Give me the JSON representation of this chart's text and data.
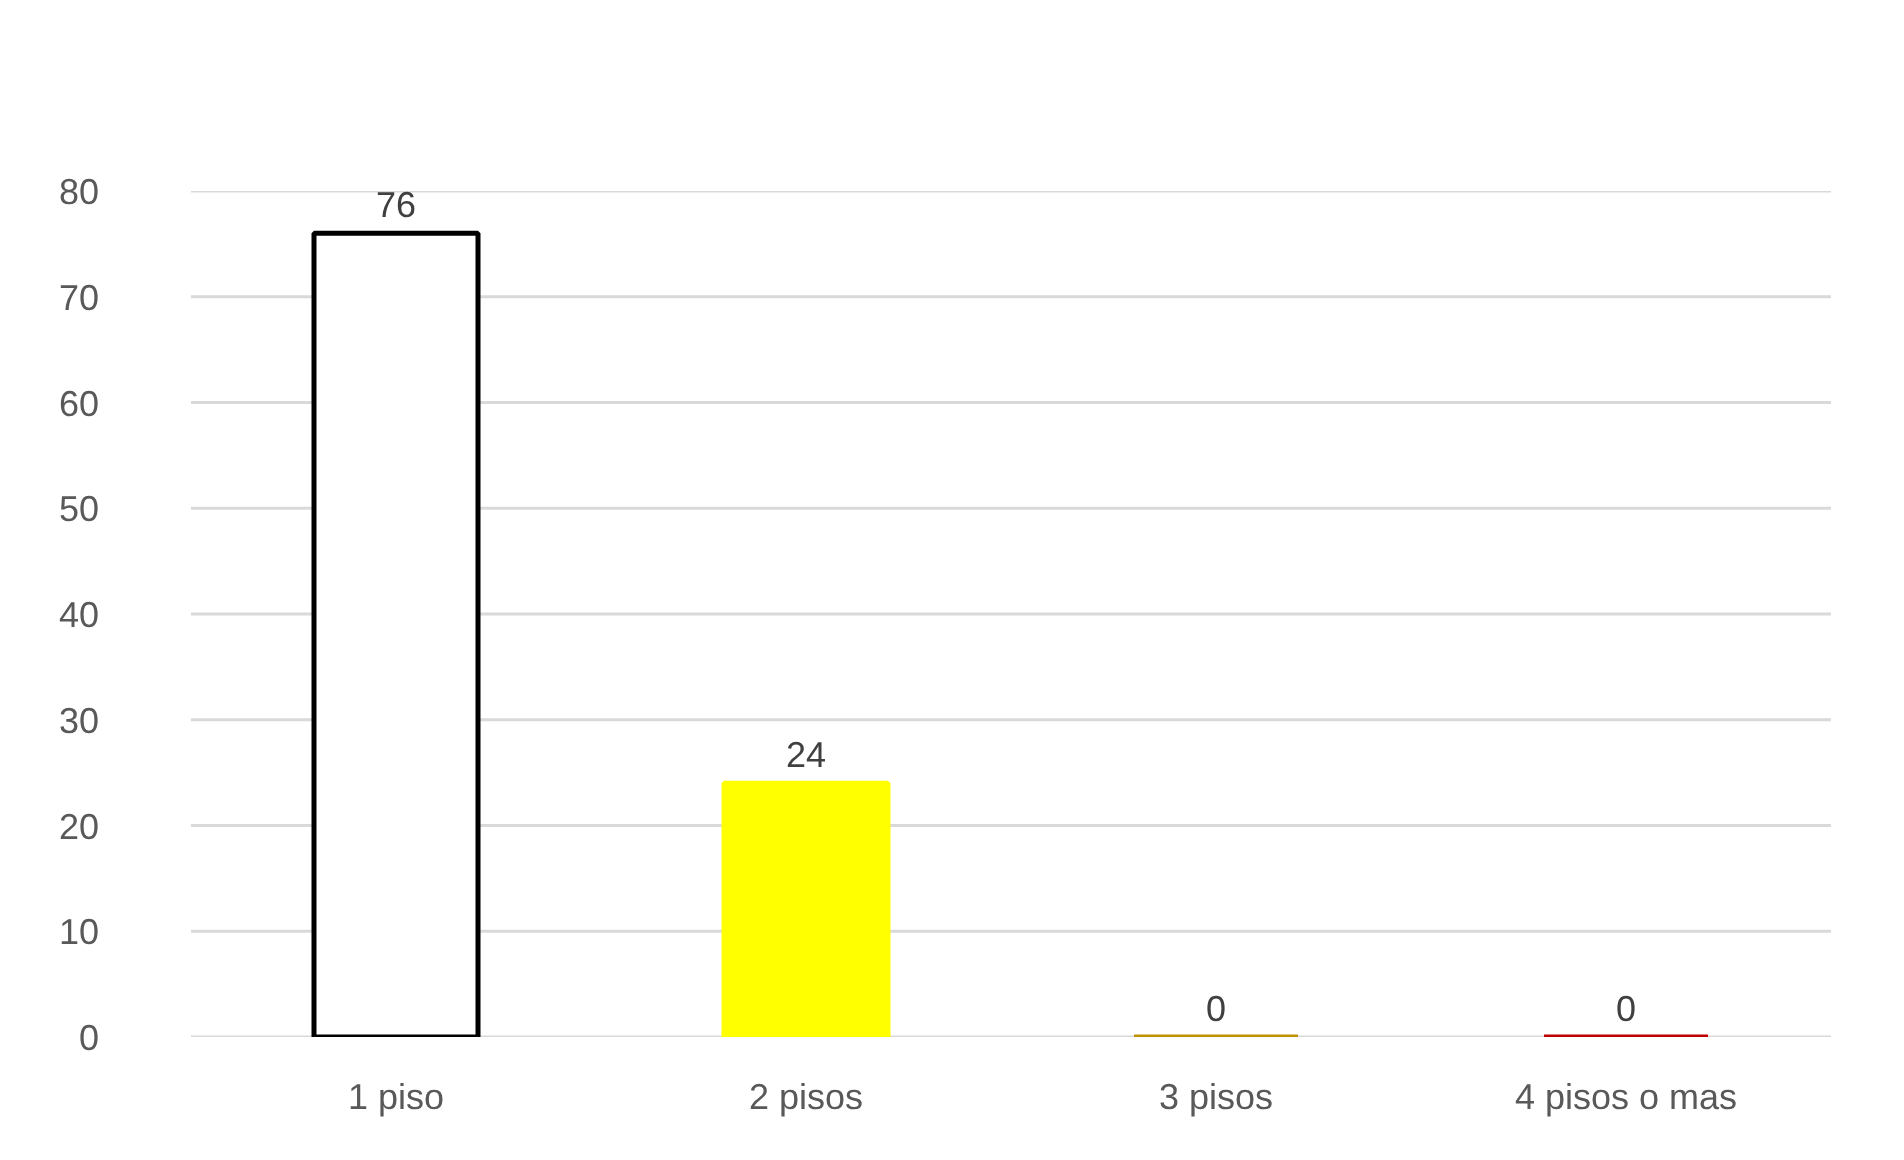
{
  "chart_data": {
    "type": "bar",
    "categories": [
      "1 piso",
      "2 pisos",
      "3 pisos",
      "4 pisos o mas"
    ],
    "values": [
      76,
      24,
      0,
      0
    ],
    "colors": [
      "#ffffff",
      "#ffff00",
      "#c09000",
      "#c00000"
    ],
    "ylim": [
      0,
      80
    ],
    "yticks": [
      0,
      10,
      20,
      30,
      40,
      50,
      60,
      70,
      80
    ],
    "grid": "y",
    "data_labels": true
  }
}
